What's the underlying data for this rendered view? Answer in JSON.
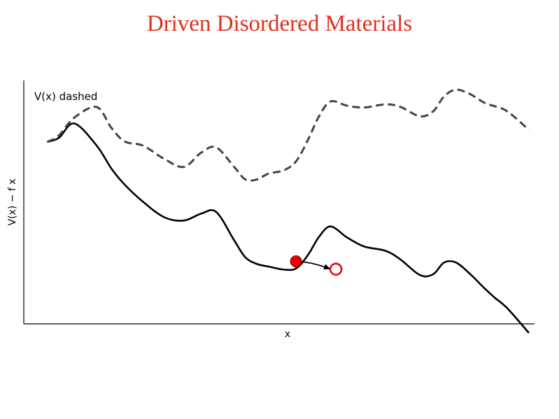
{
  "title": "Driven Disordered Materials",
  "colors": {
    "title": "#e0301e",
    "tilted_curve": "#000000",
    "potential_curve": "#444444",
    "particle": "#e80000"
  },
  "chart_data": {
    "type": "line",
    "title": "Driven Disordered Materials",
    "xlabel": "x",
    "ylabel": "V(x) − f x",
    "legend_label": "V(x) dashed",
    "legend_placement": "top-left",
    "grid": false,
    "xlim": [
      0,
      1
    ],
    "ylim": [
      0,
      1
    ],
    "series": [
      {
        "style": "solid",
        "x": [
          0.044,
          0.066,
          0.095,
          0.137,
          0.165,
          0.19,
          0.224,
          0.264,
          0.301,
          0.334,
          0.362,
          0.396,
          0.417,
          0.439,
          0.46,
          0.49,
          0.513,
          0.535,
          0.555,
          0.577,
          0.608,
          0.64,
          0.68,
          0.708,
          0.745,
          0.77,
          0.79,
          0.812,
          0.838,
          0.867,
          0.885,
          0.91,
          0.95
        ],
        "y": [
          0.789,
          0.807,
          0.871,
          0.773,
          0.67,
          0.599,
          0.524,
          0.455,
          0.44,
          0.471,
          0.478,
          0.351,
          0.276,
          0.247,
          0.236,
          0.222,
          0.229,
          0.289,
          0.367,
          0.414,
          0.365,
          0.325,
          0.306,
          0.268,
          0.198,
          0.202,
          0.253,
          0.255,
          0.206,
          0.138,
          0.099,
          0.049,
          -0.059
        ]
      },
      {
        "style": "dashed",
        "x": [
          0.044,
          0.066,
          0.095,
          0.137,
          0.165,
          0.19,
          0.224,
          0.264,
          0.301,
          0.334,
          0.362,
          0.396,
          0.417,
          0.439,
          0.46,
          0.49,
          0.513,
          0.535,
          0.555,
          0.577,
          0.608,
          0.64,
          0.68,
          0.708,
          0.745,
          0.77,
          0.79,
          0.812,
          0.838,
          0.867,
          0.885,
          0.91,
          0.95
        ],
        "y": [
          0.789,
          0.818,
          0.897,
          0.944,
          0.851,
          0.791,
          0.773,
          0.714,
          0.678,
          0.742,
          0.765,
          0.677,
          0.622,
          0.623,
          0.648,
          0.664,
          0.706,
          0.801,
          0.902,
          0.969,
          0.95,
          0.942,
          0.956,
          0.945,
          0.903,
          0.925,
          0.99,
          1.021,
          1.003,
          0.962,
          0.948,
          0.924,
          0.843
        ]
      }
    ],
    "points": [
      {
        "style": "filled",
        "x": 0.512,
        "y": 0.259
      },
      {
        "style": "open",
        "x": 0.587,
        "y": 0.224
      }
    ],
    "arrow": {
      "from": [
        0.512,
        0.259
      ],
      "to": [
        0.575,
        0.226
      ]
    }
  }
}
